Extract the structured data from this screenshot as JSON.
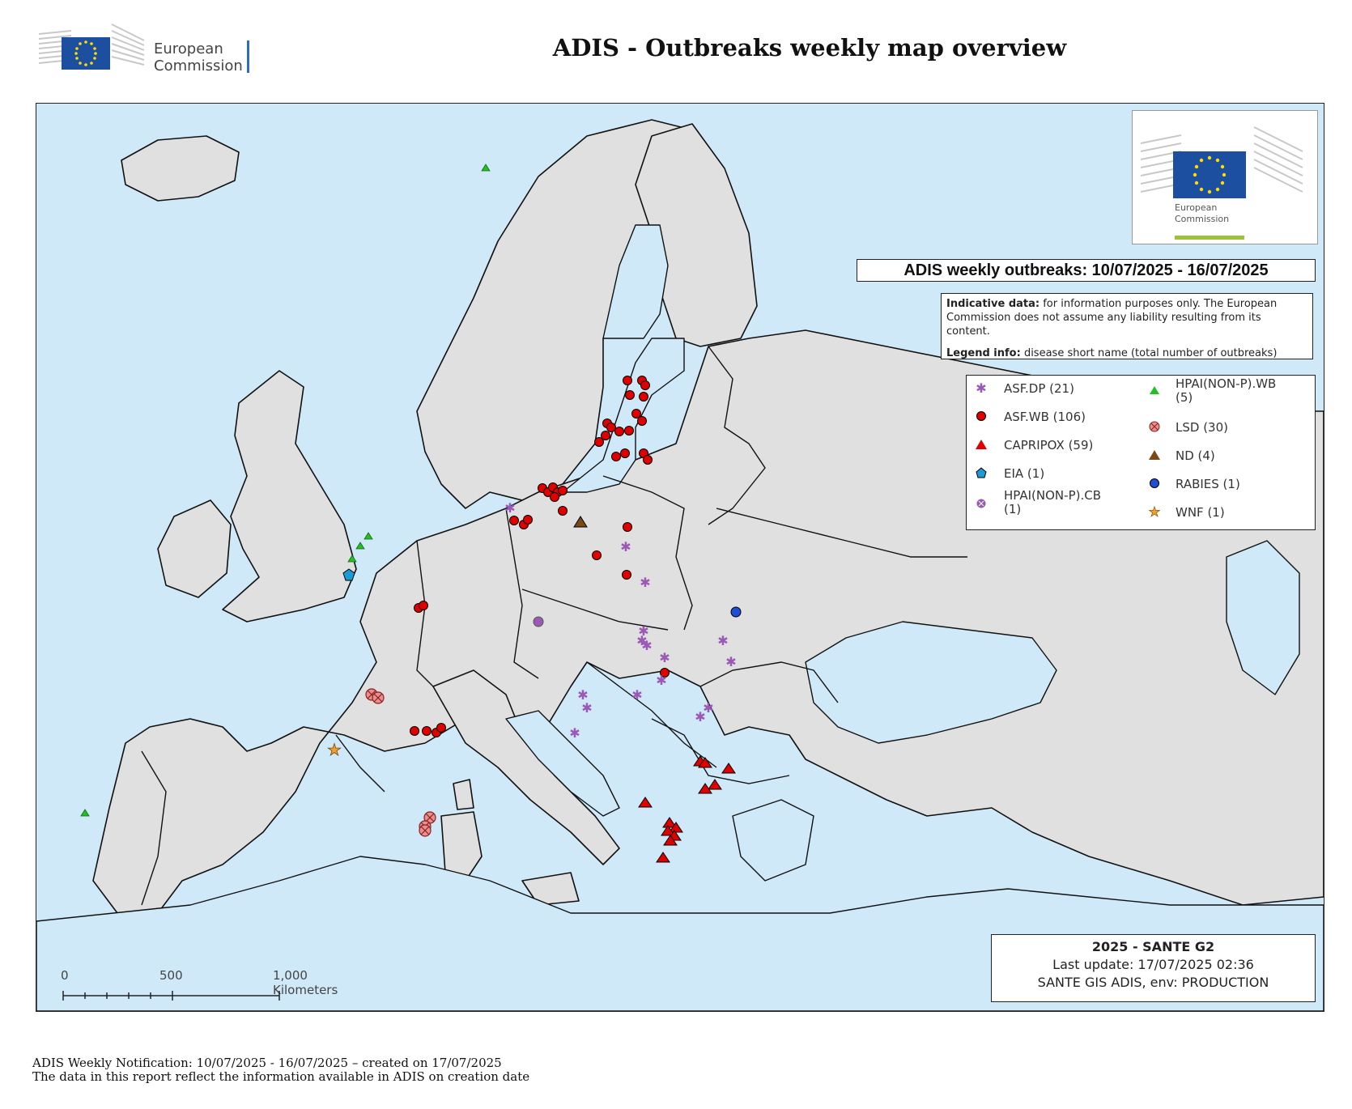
{
  "header": {
    "org_line1": "European",
    "org_line2": "Commission",
    "title": "ADIS - Outbreaks weekly map overview"
  },
  "map": {
    "panel_logo_line1": "European",
    "panel_logo_line2": "Commission",
    "weekly_title": "ADIS  weekly outbreaks: 10/07/2025 - 16/07/2025",
    "info_label1": "Indicative data:",
    "info_text1": " for information purposes only. The European Commission does not assume any liability resulting from its content.",
    "info_label2": "Legend info:",
    "info_text2": " disease short name (total number of outbreaks)",
    "legend": [
      {
        "label": "ASF.DP (21)",
        "symbol": "purple-asterisk",
        "color": "#9b59b6"
      },
      {
        "label": "ASF.WB (106)",
        "symbol": "red-black-circle",
        "color": "#e00000"
      },
      {
        "label": "CAPRIPOX (59)",
        "symbol": "red-triangle",
        "color": "#e00000"
      },
      {
        "label": "EIA (1)",
        "symbol": "blue-pentagon",
        "color": "#1b9bd6"
      },
      {
        "label": "HPAI(NON-P).CB\n(1)",
        "symbol": "purple-circle-x",
        "color": "#9b59b6"
      },
      {
        "label": "HPAI(NON-P).WB\n(5)",
        "symbol": "green-triangle",
        "color": "#22c022"
      },
      {
        "label": "LSD (30)",
        "symbol": "pink-circle-x",
        "color": "#e89090"
      },
      {
        "label": "ND (4)",
        "symbol": "brown-triangle",
        "color": "#7b4a14"
      },
      {
        "label": "RABIES (1)",
        "symbol": "blue-black-circle",
        "color": "#1f4fd6"
      },
      {
        "label": "WNF (1)",
        "symbol": "orange-star",
        "color": "#f0a030"
      }
    ],
    "scale_0": "0",
    "scale_500": "500",
    "scale_1000": "1,000 Kilometers",
    "credit_title": "2025 - SANTE G2",
    "credit_update": "Last update: 17/07/2025 02:36",
    "credit_env": "SANTE GIS ADIS, env: PRODUCTION",
    "colors": {
      "sea": "#cfe9f9",
      "land": "#e0e0e0",
      "border": "#111111"
    }
  },
  "footer": {
    "line1": "ADIS Weekly Notification: 10/07/2025 - 16/07/2025 – created on 17/07/2025",
    "line2": "The data in this report reflect the information available in ADIS on creation date"
  }
}
